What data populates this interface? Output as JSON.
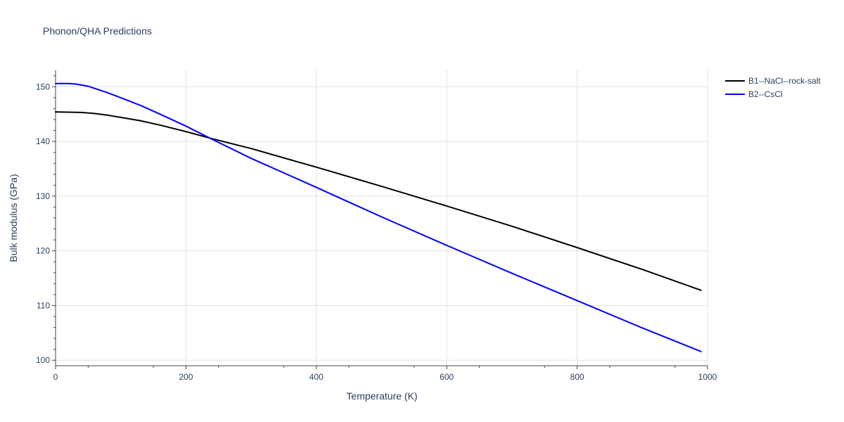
{
  "chart_data": {
    "type": "line",
    "title": "Phonon/QHA Predictions",
    "xlabel": "Temperature (K)",
    "ylabel": "Bulk modulus (GPa)",
    "xlim": [
      0,
      1000
    ],
    "ylim": [
      99,
      153
    ],
    "xticks": [
      0,
      200,
      400,
      600,
      800,
      1000
    ],
    "yticks": [
      100,
      110,
      120,
      130,
      140,
      150
    ],
    "grid": true,
    "legend_position": "top-right",
    "series": [
      {
        "name": "B1--NaCl--rock-salt",
        "color": "#000000",
        "x": [
          0,
          20,
          40,
          60,
          80,
          100,
          130,
          160,
          200,
          240,
          300,
          400,
          500,
          600,
          700,
          800,
          900,
          990
        ],
        "y": [
          145.4,
          145.35,
          145.3,
          145.1,
          144.8,
          144.4,
          143.8,
          143.0,
          141.8,
          140.5,
          138.7,
          135.3,
          131.8,
          128.2,
          124.5,
          120.6,
          116.6,
          112.8
        ]
      },
      {
        "name": "B2--CsCl",
        "color": "#0000ff",
        "x": [
          0,
          20,
          30,
          50,
          80,
          100,
          130,
          160,
          200,
          240,
          300,
          400,
          500,
          600,
          700,
          800,
          900,
          990
        ],
        "y": [
          150.6,
          150.6,
          150.5,
          150.1,
          148.9,
          148.0,
          146.6,
          145.0,
          142.8,
          140.4,
          136.9,
          131.6,
          126.2,
          121.0,
          115.9,
          110.9,
          105.9,
          101.6
        ]
      }
    ]
  }
}
